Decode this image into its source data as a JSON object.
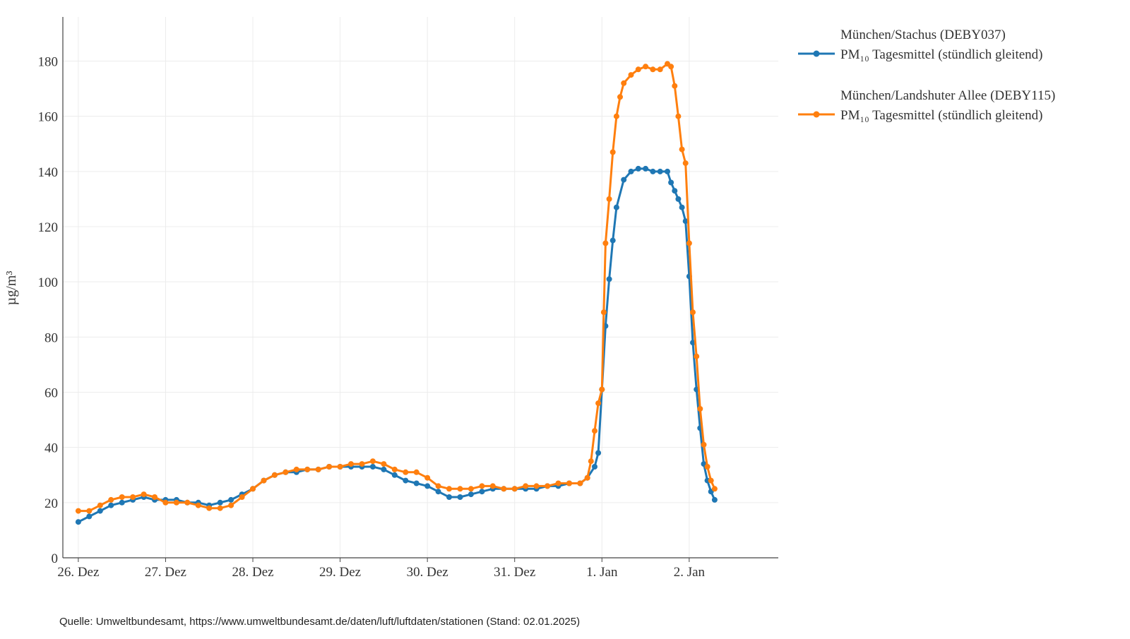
{
  "chart_data": {
    "type": "line",
    "ylabel": "µg/m³",
    "ylim": [
      0,
      196
    ],
    "yticks": [
      0,
      20,
      40,
      60,
      80,
      100,
      120,
      140,
      160,
      180
    ],
    "xlim": [
      "2024-12-25T19:45",
      "2025-01-03T00:30"
    ],
    "xticks": [
      {
        "label": "26. Dez",
        "date": "2024-12-26T00:00"
      },
      {
        "label": "27. Dez",
        "date": "2024-12-27T00:00"
      },
      {
        "label": "28. Dez",
        "date": "2024-12-28T00:00"
      },
      {
        "label": "29. Dez",
        "date": "2024-12-29T00:00"
      },
      {
        "label": "30. Dez",
        "date": "2024-12-30T00:00"
      },
      {
        "label": "31. Dez",
        "date": "2024-12-31T00:00"
      },
      {
        "label": "1. Jan",
        "date": "2025-01-01T00:00"
      },
      {
        "label": "2. Jan",
        "date": "2025-01-02T00:00"
      }
    ],
    "grid": true,
    "legend_position": "right",
    "series": [
      {
        "name_station": "München/Stachus (DEBY037)",
        "name_metric": "PM₁₀ Tagesmittel (stündlich gleitend)",
        "color": "#1f77b4",
        "points": [
          [
            "2024-12-26T00:00",
            13
          ],
          [
            "2024-12-26T03:00",
            15
          ],
          [
            "2024-12-26T06:00",
            17
          ],
          [
            "2024-12-26T09:00",
            19
          ],
          [
            "2024-12-26T12:00",
            20
          ],
          [
            "2024-12-26T15:00",
            21
          ],
          [
            "2024-12-26T18:00",
            22
          ],
          [
            "2024-12-26T21:00",
            21
          ],
          [
            "2024-12-27T00:00",
            21
          ],
          [
            "2024-12-27T03:00",
            21
          ],
          [
            "2024-12-27T06:00",
            20
          ],
          [
            "2024-12-27T09:00",
            20
          ],
          [
            "2024-12-27T12:00",
            19
          ],
          [
            "2024-12-27T15:00",
            20
          ],
          [
            "2024-12-27T18:00",
            21
          ],
          [
            "2024-12-27T21:00",
            23
          ],
          [
            "2024-12-28T00:00",
            25
          ],
          [
            "2024-12-28T03:00",
            28
          ],
          [
            "2024-12-28T06:00",
            30
          ],
          [
            "2024-12-28T09:00",
            31
          ],
          [
            "2024-12-28T12:00",
            31
          ],
          [
            "2024-12-28T15:00",
            32
          ],
          [
            "2024-12-28T18:00",
            32
          ],
          [
            "2024-12-28T21:00",
            33
          ],
          [
            "2024-12-29T00:00",
            33
          ],
          [
            "2024-12-29T03:00",
            33
          ],
          [
            "2024-12-29T06:00",
            33
          ],
          [
            "2024-12-29T09:00",
            33
          ],
          [
            "2024-12-29T12:00",
            32
          ],
          [
            "2024-12-29T15:00",
            30
          ],
          [
            "2024-12-29T18:00",
            28
          ],
          [
            "2024-12-29T21:00",
            27
          ],
          [
            "2024-12-30T00:00",
            26
          ],
          [
            "2024-12-30T03:00",
            24
          ],
          [
            "2024-12-30T06:00",
            22
          ],
          [
            "2024-12-30T09:00",
            22
          ],
          [
            "2024-12-30T12:00",
            23
          ],
          [
            "2024-12-30T15:00",
            24
          ],
          [
            "2024-12-30T18:00",
            25
          ],
          [
            "2024-12-30T21:00",
            25
          ],
          [
            "2024-12-31T00:00",
            25
          ],
          [
            "2024-12-31T03:00",
            25
          ],
          [
            "2024-12-31T06:00",
            25
          ],
          [
            "2024-12-31T09:00",
            26
          ],
          [
            "2024-12-31T12:00",
            26
          ],
          [
            "2024-12-31T15:00",
            27
          ],
          [
            "2024-12-31T18:00",
            27
          ],
          [
            "2024-12-31T20:00",
            29
          ],
          [
            "2024-12-31T22:00",
            33
          ],
          [
            "2024-12-31T23:00",
            38
          ],
          [
            "2025-01-01T00:00",
            61
          ],
          [
            "2025-01-01T01:00",
            84
          ],
          [
            "2025-01-01T02:00",
            101
          ],
          [
            "2025-01-01T03:00",
            115
          ],
          [
            "2025-01-01T04:00",
            127
          ],
          [
            "2025-01-01T06:00",
            137
          ],
          [
            "2025-01-01T08:00",
            140
          ],
          [
            "2025-01-01T10:00",
            141
          ],
          [
            "2025-01-01T12:00",
            141
          ],
          [
            "2025-01-01T14:00",
            140
          ],
          [
            "2025-01-01T16:00",
            140
          ],
          [
            "2025-01-01T18:00",
            140
          ],
          [
            "2025-01-01T19:00",
            136
          ],
          [
            "2025-01-01T20:00",
            133
          ],
          [
            "2025-01-01T21:00",
            130
          ],
          [
            "2025-01-01T22:00",
            127
          ],
          [
            "2025-01-01T23:00",
            122
          ],
          [
            "2025-01-02T00:00",
            102
          ],
          [
            "2025-01-02T01:00",
            78
          ],
          [
            "2025-01-02T02:00",
            61
          ],
          [
            "2025-01-02T03:00",
            47
          ],
          [
            "2025-01-02T04:00",
            34
          ],
          [
            "2025-01-02T05:00",
            28
          ],
          [
            "2025-01-02T06:00",
            24
          ],
          [
            "2025-01-02T07:00",
            21
          ]
        ]
      },
      {
        "name_station": "München/Landshuter Allee (DEBY115)",
        "name_metric": "PM₁₀ Tagesmittel (stündlich gleitend)",
        "color": "#ff7f0e",
        "points": [
          [
            "2024-12-26T00:00",
            17
          ],
          [
            "2024-12-26T03:00",
            17
          ],
          [
            "2024-12-26T06:00",
            19
          ],
          [
            "2024-12-26T09:00",
            21
          ],
          [
            "2024-12-26T12:00",
            22
          ],
          [
            "2024-12-26T15:00",
            22
          ],
          [
            "2024-12-26T18:00",
            23
          ],
          [
            "2024-12-26T21:00",
            22
          ],
          [
            "2024-12-27T00:00",
            20
          ],
          [
            "2024-12-27T03:00",
            20
          ],
          [
            "2024-12-27T06:00",
            20
          ],
          [
            "2024-12-27T09:00",
            19
          ],
          [
            "2024-12-27T12:00",
            18
          ],
          [
            "2024-12-27T15:00",
            18
          ],
          [
            "2024-12-27T18:00",
            19
          ],
          [
            "2024-12-27T21:00",
            22
          ],
          [
            "2024-12-28T00:00",
            25
          ],
          [
            "2024-12-28T03:00",
            28
          ],
          [
            "2024-12-28T06:00",
            30
          ],
          [
            "2024-12-28T09:00",
            31
          ],
          [
            "2024-12-28T12:00",
            32
          ],
          [
            "2024-12-28T15:00",
            32
          ],
          [
            "2024-12-28T18:00",
            32
          ],
          [
            "2024-12-28T21:00",
            33
          ],
          [
            "2024-12-29T00:00",
            33
          ],
          [
            "2024-12-29T03:00",
            34
          ],
          [
            "2024-12-29T06:00",
            34
          ],
          [
            "2024-12-29T09:00",
            35
          ],
          [
            "2024-12-29T12:00",
            34
          ],
          [
            "2024-12-29T15:00",
            32
          ],
          [
            "2024-12-29T18:00",
            31
          ],
          [
            "2024-12-29T21:00",
            31
          ],
          [
            "2024-12-30T00:00",
            29
          ],
          [
            "2024-12-30T03:00",
            26
          ],
          [
            "2024-12-30T06:00",
            25
          ],
          [
            "2024-12-30T09:00",
            25
          ],
          [
            "2024-12-30T12:00",
            25
          ],
          [
            "2024-12-30T15:00",
            26
          ],
          [
            "2024-12-30T18:00",
            26
          ],
          [
            "2024-12-30T21:00",
            25
          ],
          [
            "2024-12-31T00:00",
            25
          ],
          [
            "2024-12-31T03:00",
            26
          ],
          [
            "2024-12-31T06:00",
            26
          ],
          [
            "2024-12-31T09:00",
            26
          ],
          [
            "2024-12-31T12:00",
            27
          ],
          [
            "2024-12-31T15:00",
            27
          ],
          [
            "2024-12-31T18:00",
            27
          ],
          [
            "2024-12-31T20:00",
            29
          ],
          [
            "2024-12-31T21:00",
            35
          ],
          [
            "2024-12-31T22:00",
            46
          ],
          [
            "2024-12-31T23:00",
            56
          ],
          [
            "2025-01-01T00:00",
            61
          ],
          [
            "2025-01-01T00:30",
            89
          ],
          [
            "2025-01-01T01:00",
            114
          ],
          [
            "2025-01-01T02:00",
            130
          ],
          [
            "2025-01-01T03:00",
            147
          ],
          [
            "2025-01-01T04:00",
            160
          ],
          [
            "2025-01-01T05:00",
            167
          ],
          [
            "2025-01-01T06:00",
            172
          ],
          [
            "2025-01-01T08:00",
            175
          ],
          [
            "2025-01-01T10:00",
            177
          ],
          [
            "2025-01-01T12:00",
            178
          ],
          [
            "2025-01-01T14:00",
            177
          ],
          [
            "2025-01-01T16:00",
            177
          ],
          [
            "2025-01-01T18:00",
            179
          ],
          [
            "2025-01-01T19:00",
            178
          ],
          [
            "2025-01-01T20:00",
            171
          ],
          [
            "2025-01-01T21:00",
            160
          ],
          [
            "2025-01-01T22:00",
            148
          ],
          [
            "2025-01-01T23:00",
            143
          ],
          [
            "2025-01-02T00:00",
            114
          ],
          [
            "2025-01-02T01:00",
            89
          ],
          [
            "2025-01-02T02:00",
            73
          ],
          [
            "2025-01-02T03:00",
            54
          ],
          [
            "2025-01-02T04:00",
            41
          ],
          [
            "2025-01-02T05:00",
            33
          ],
          [
            "2025-01-02T06:00",
            28
          ],
          [
            "2025-01-02T07:00",
            25
          ]
        ]
      }
    ]
  },
  "source_note": "Quelle: Umweltbundesamt, https://www.umweltbundesamt.de/daten/luft/luftdaten/stationen (Stand: 02.01.2025)"
}
